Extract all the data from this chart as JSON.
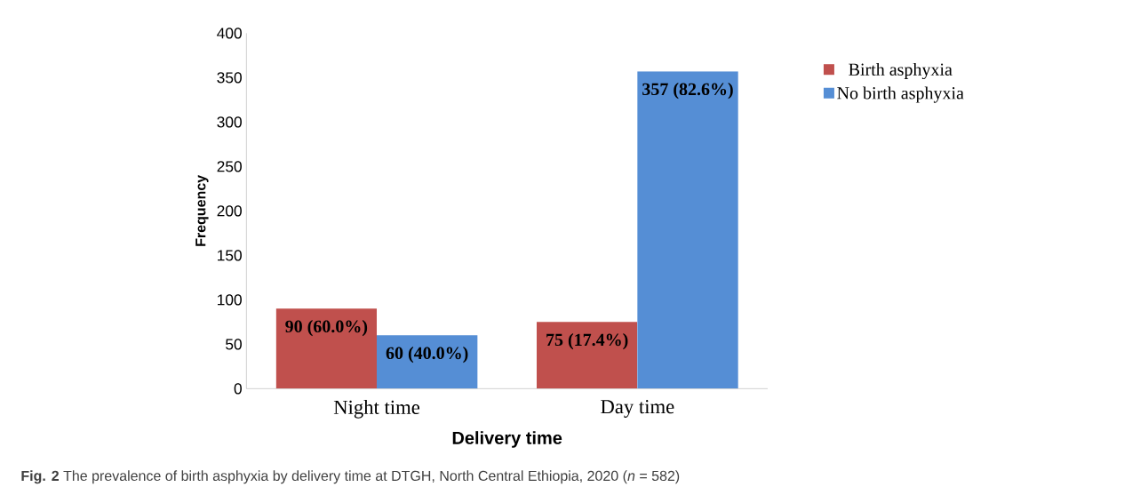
{
  "chart_data": {
    "type": "bar",
    "xlabel": "Delivery time",
    "ylabel": "Frequency",
    "categories": [
      "Night time",
      "Day time"
    ],
    "series": [
      {
        "name": "Birth asphyxia",
        "color": "#c0504d",
        "values": [
          90,
          75
        ],
        "value_labels": [
          "90 (60.0%)",
          "75 (17.4%)"
        ]
      },
      {
        "name": "No birth asphyxia",
        "color": "#558ed5",
        "values": [
          60,
          357
        ],
        "value_labels": [
          "60 (40.0%)",
          "357 (82.6%)"
        ]
      }
    ],
    "ylim": [
      0,
      400
    ],
    "yticks": [
      0,
      50,
      100,
      150,
      200,
      250,
      300,
      350,
      400
    ],
    "legend": "right",
    "annotations": [
      "**Fig. 2** The prevalence of birth asphyxia by delivery time at DTGH, North Central Ethiopia, 2020 (*n* = 582)"
    ]
  }
}
